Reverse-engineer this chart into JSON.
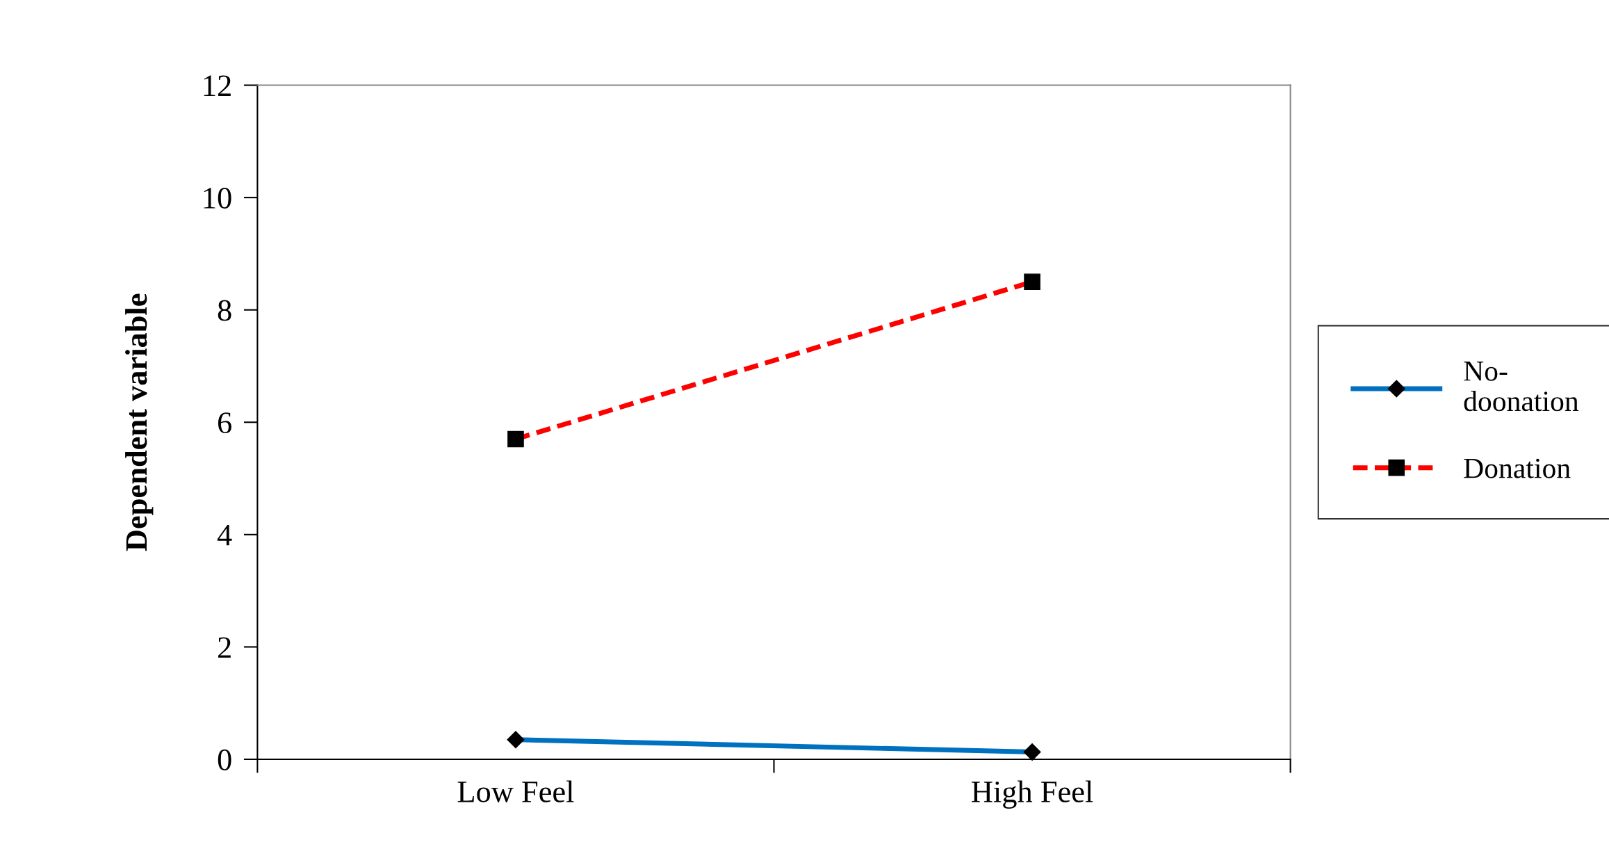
{
  "chart_data": {
    "type": "line",
    "ylabel": "Dependent variable",
    "categories": [
      "Low Feel",
      "High Feel"
    ],
    "series": [
      {
        "name": "No-\ndoonation",
        "color": "#0070c0",
        "values": [
          0.35,
          0.13
        ],
        "marker": "diamond",
        "line_style": "solid"
      },
      {
        "name": "Donation",
        "color": "#ff0000",
        "values": [
          5.7,
          8.5
        ],
        "marker": "square",
        "line_style": "dashed"
      }
    ],
    "ylim": [
      0,
      12
    ],
    "yticks": [
      0,
      2,
      4,
      6,
      8,
      10,
      12
    ],
    "grid": false,
    "legend": "right"
  }
}
